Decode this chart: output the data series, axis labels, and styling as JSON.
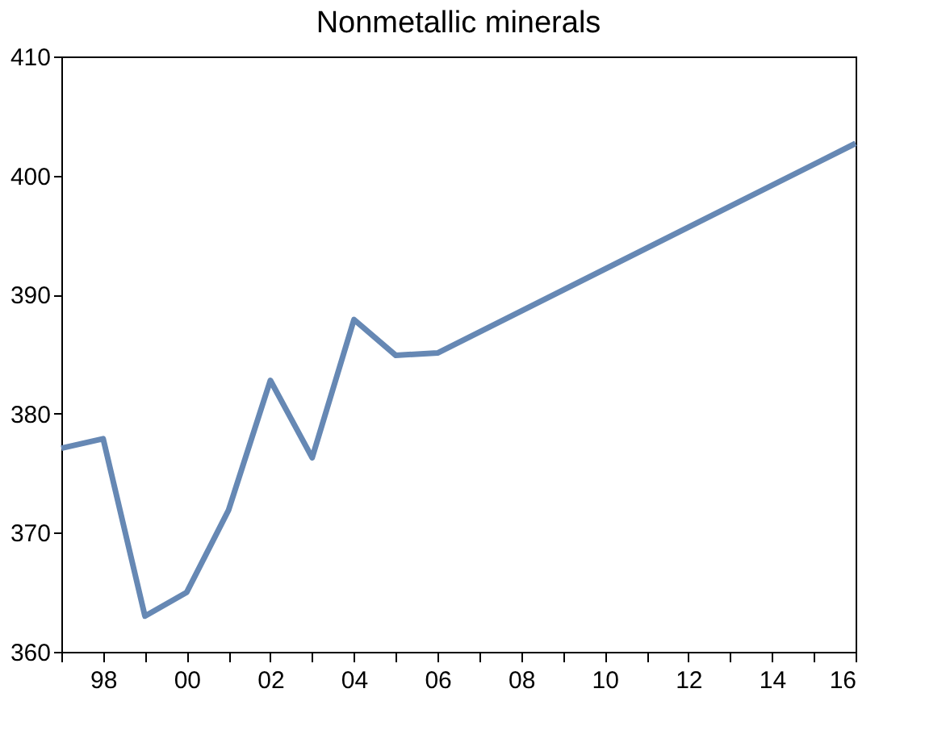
{
  "chart_data": {
    "type": "line",
    "title": "Nonmetallic minerals",
    "x": [
      1997,
      1998,
      1999,
      2000,
      2001,
      2002,
      2003,
      2004,
      2005,
      2006,
      2016
    ],
    "series": [
      {
        "color": "#6688b4",
        "values": [
          377.1,
          377.9,
          363.0,
          365.0,
          371.9,
          382.8,
          376.3,
          387.9,
          384.9,
          385.1,
          402.7
        ]
      }
    ],
    "xlim": [
      1997,
      2016
    ],
    "xticks": [
      {
        "value": 1997,
        "label": null
      },
      {
        "value": 1998,
        "label": "98"
      },
      {
        "value": 1999,
        "label": null
      },
      {
        "value": 2000,
        "label": "00"
      },
      {
        "value": 2001,
        "label": null
      },
      {
        "value": 2002,
        "label": "02"
      },
      {
        "value": 2003,
        "label": null
      },
      {
        "value": 2004,
        "label": "04"
      },
      {
        "value": 2005,
        "label": null
      },
      {
        "value": 2006,
        "label": "06"
      },
      {
        "value": 2007,
        "label": null
      },
      {
        "value": 2008,
        "label": "08"
      },
      {
        "value": 2009,
        "label": null
      },
      {
        "value": 2010,
        "label": "10"
      },
      {
        "value": 2011,
        "label": null
      },
      {
        "value": 2012,
        "label": "12"
      },
      {
        "value": 2013,
        "label": null
      },
      {
        "value": 2014,
        "label": "14"
      },
      {
        "value": 2015,
        "label": null
      },
      {
        "value": 2016,
        "label": "16"
      }
    ],
    "ylim": [
      360,
      410
    ],
    "yticks": [
      360,
      370,
      380,
      390,
      400,
      410
    ],
    "grid": false,
    "marker": "none",
    "line_style": "solid"
  }
}
